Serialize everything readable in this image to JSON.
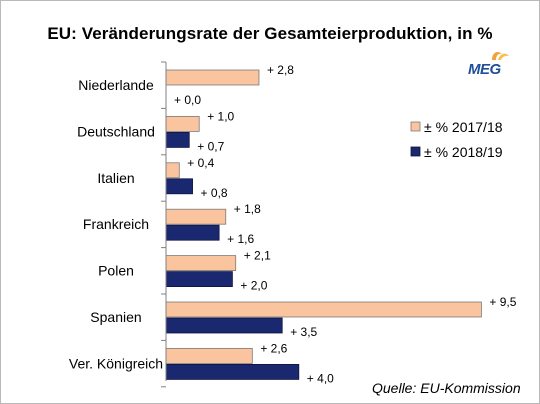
{
  "title": "EU: Veränderungsrate der Gesamteierproduktion, in %",
  "logo_text": "MEG",
  "source": "Quelle: EU-Kommission",
  "colors": {
    "series_2017": "#f9c49e",
    "series_2018": "#1a2870",
    "axis": "#808080"
  },
  "chart_data": {
    "type": "bar",
    "orientation": "horizontal",
    "categories": [
      "Niederlande",
      "Deutschland",
      "Italien",
      "Frankreich",
      "Polen",
      "Spanien",
      "Ver. Königreich"
    ],
    "series": [
      {
        "name": "± % 2017/18",
        "values": [
          2.8,
          1.0,
          0.4,
          1.8,
          2.1,
          9.5,
          2.6
        ],
        "labels": [
          "+ 2,8",
          "+ 1,0",
          "+ 0,4",
          "+ 1,8",
          "+ 2,1",
          "+ 9,5",
          "+ 2,6"
        ]
      },
      {
        "name": "± % 2018/19",
        "values": [
          0.0,
          0.7,
          0.8,
          1.6,
          2.0,
          3.5,
          4.0
        ],
        "labels": [
          "+ 0,0",
          "+ 0,7",
          "+ 0,8",
          "+ 1,6",
          "+ 2,0",
          "+ 3,5",
          "+ 4,0"
        ]
      }
    ],
    "xlim": [
      0,
      10
    ],
    "grid": false,
    "legend_position": "right"
  }
}
